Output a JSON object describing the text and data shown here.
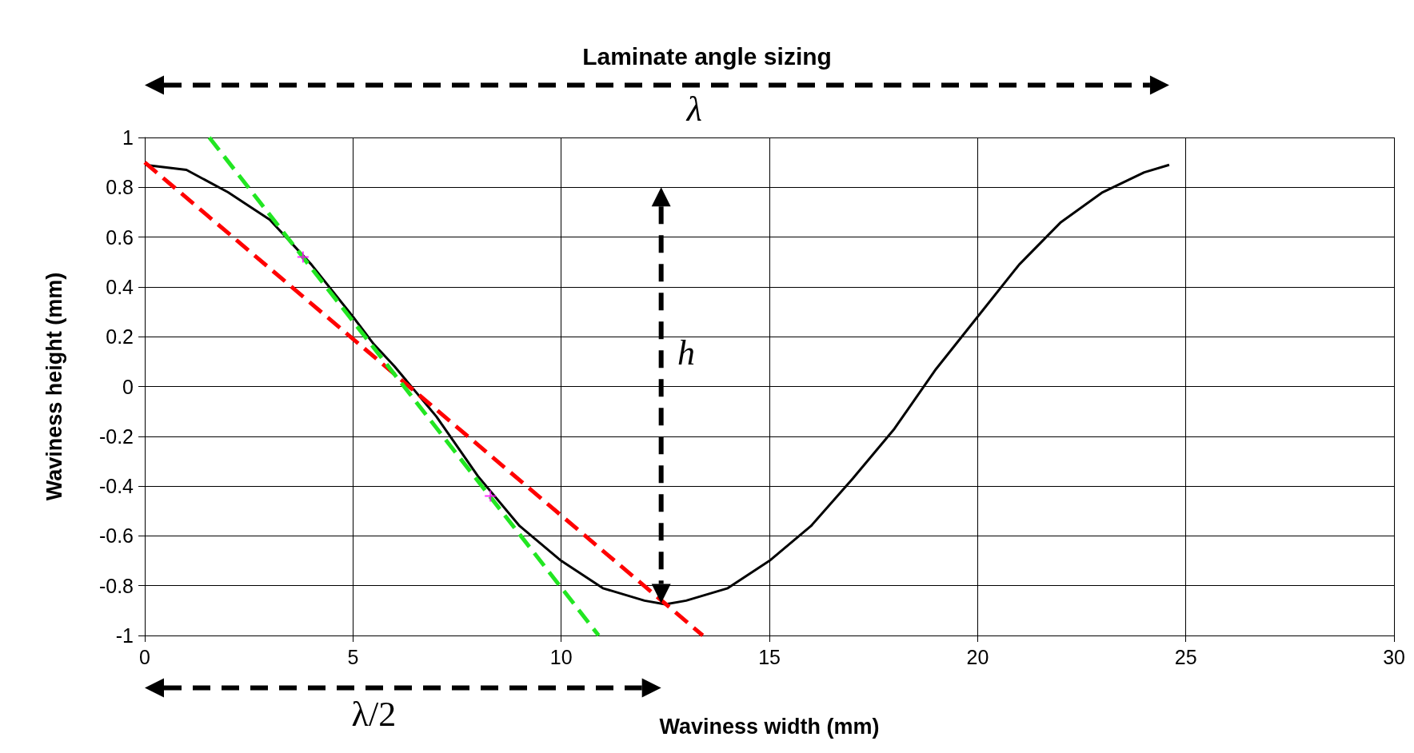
{
  "chart_data": {
    "type": "line",
    "title": "Laminate angle sizing",
    "xlabel": "Waviness width (mm)",
    "ylabel": "Waviness height (mm)",
    "annotations": [
      "λ",
      "h",
      "λ/2"
    ],
    "series": [
      {
        "color": "#000000",
        "marker": "none",
        "line_style": "solid",
        "x": [
          0,
          1,
          2,
          3,
          4,
          5,
          5.5,
          6,
          7,
          8,
          9,
          10,
          11,
          12,
          12.5,
          13,
          14,
          15,
          16,
          17,
          18,
          19,
          20,
          21,
          22,
          23,
          24,
          24.6
        ],
        "values": [
          0.89,
          0.87,
          0.78,
          0.67,
          0.49,
          0.28,
          0.17,
          0.08,
          -0.12,
          -0.36,
          -0.56,
          -0.7,
          -0.81,
          -0.86,
          -0.875,
          -0.86,
          -0.81,
          -0.7,
          -0.56,
          -0.37,
          -0.17,
          0.07,
          0.28,
          0.49,
          0.66,
          0.78,
          0.86,
          0.89
        ]
      },
      {
        "color": "#ff0000",
        "marker": "none",
        "line_style": "dashed",
        "x": [
          0,
          13.4
        ],
        "values": [
          0.9,
          -1
        ]
      },
      {
        "color": "#22e622",
        "marker": "none",
        "line_style": "dashed",
        "x": [
          1.55,
          10.9
        ],
        "values": [
          1,
          -1
        ]
      },
      {
        "type": "scatter",
        "color": "#ff00ff",
        "marker": "cross",
        "x": [
          3.8,
          8.3
        ],
        "values": [
          0.52,
          -0.44
        ]
      }
    ],
    "xlim": [
      0,
      30
    ],
    "xticks": [
      0,
      5,
      10,
      15,
      20,
      25,
      30
    ],
    "ylim": [
      -1,
      1
    ],
    "yticks": [
      -1,
      -0.8,
      -0.6,
      -0.4,
      -0.2,
      0,
      0.2,
      0.4,
      0.6,
      0.8,
      1
    ],
    "grid": true
  }
}
